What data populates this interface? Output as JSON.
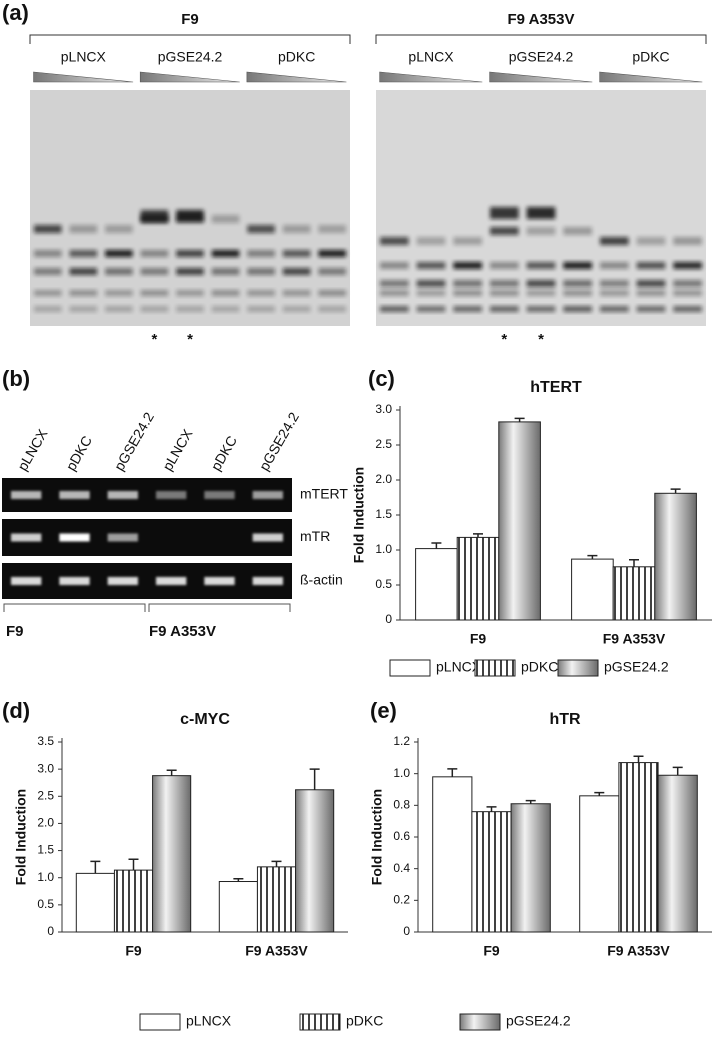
{
  "panel_a": {
    "label": "(a)",
    "groups": [
      {
        "name": "F9",
        "lanes": [
          "pLNCX",
          "pGSE24.2",
          "pDKC"
        ]
      },
      {
        "name": "F9 A353V",
        "lanes": [
          "pLNCX",
          "pGSE24.2",
          "pDKC"
        ]
      }
    ],
    "markers": [
      "*",
      "*",
      "*",
      "*"
    ]
  },
  "panel_b": {
    "label": "(b)",
    "lanes": [
      "pLNCX",
      "pDKC",
      "pGSE24.2",
      "pLNCX",
      "pDKC",
      "pGSE24.2"
    ],
    "genes": [
      "mTERT",
      "mTR",
      "ß-actin"
    ],
    "groups": [
      "F9",
      "F9 A353V"
    ]
  },
  "chart_data": [
    {
      "type": "bar",
      "panel_label": "(c)",
      "title": "hTERT",
      "y_label": "Fold Induction",
      "categories": [
        "F9",
        "F9 A353V"
      ],
      "series": [
        {
          "name": "pLNCX",
          "color": "#ffffff",
          "fill": "plain",
          "values": [
            1.02,
            0.87
          ],
          "errors": [
            0.08,
            0.05
          ]
        },
        {
          "name": "pDKC",
          "color": "#ffffff",
          "fill": "stripes",
          "values": [
            1.18,
            0.76
          ],
          "errors": [
            0.05,
            0.1
          ]
        },
        {
          "name": "pGSE24.2",
          "color": "#9a9a9a",
          "fill": "gradient",
          "values": [
            2.83,
            1.81
          ],
          "errors": [
            0.05,
            0.06
          ]
        }
      ],
      "ylim": [
        0,
        3
      ],
      "yticks": [
        0,
        0.5,
        {
          "value": 1,
          "label": "1.0"
        },
        1.5,
        {
          "value": 2,
          "label": "2.0"
        },
        2.5,
        {
          "value": 3,
          "label": "3.0"
        }
      ],
      "legend": "bottom"
    },
    {
      "type": "bar",
      "panel_label": "(d)",
      "title": "c-MYC",
      "y_label": "Fold Induction",
      "categories": [
        "F9",
        "F9 A353V"
      ],
      "series": [
        {
          "name": "pLNCX",
          "color": "#ffffff",
          "fill": "plain",
          "values": [
            1.08,
            0.93
          ],
          "errors": [
            0.22,
            0.05
          ]
        },
        {
          "name": "pDKC",
          "color": "#ffffff",
          "fill": "stripes",
          "values": [
            1.14,
            1.2
          ],
          "errors": [
            0.2,
            0.1
          ]
        },
        {
          "name": "pGSE24.2",
          "color": "#9a9a9a",
          "fill": "gradient",
          "values": [
            2.88,
            2.62
          ],
          "errors": [
            0.1,
            0.38
          ]
        }
      ],
      "ylim": [
        0,
        3.5
      ],
      "yticks": [
        0,
        0.5,
        {
          "value": 1,
          "label": "1.0"
        },
        1.5,
        {
          "value": 2,
          "label": "2.0"
        },
        2.5,
        {
          "value": 3,
          "label": "3.0"
        },
        3.5
      ],
      "legend": "bottom"
    },
    {
      "type": "bar",
      "panel_label": "(e)",
      "title": "hTR",
      "y_label": "Fold Induction",
      "categories": [
        "F9",
        "F9 A353V"
      ],
      "series": [
        {
          "name": "pLNCX",
          "color": "#ffffff",
          "fill": "plain",
          "values": [
            0.98,
            0.86
          ],
          "errors": [
            0.05,
            0.02
          ]
        },
        {
          "name": "pDKC",
          "color": "#ffffff",
          "fill": "stripes",
          "values": [
            0.76,
            1.07
          ],
          "errors": [
            0.03,
            0.04
          ]
        },
        {
          "name": "pGSE24.2",
          "color": "#9a9a9a",
          "fill": "gradient",
          "values": [
            0.81,
            0.99
          ],
          "errors": [
            0.02,
            0.05
          ]
        }
      ],
      "ylim": [
        0,
        1.2
      ],
      "yticks": [
        0,
        0.2,
        0.4,
        0.6,
        0.8,
        {
          "value": 1,
          "label": "1.0"
        },
        1.2
      ],
      "legend": "none"
    }
  ]
}
